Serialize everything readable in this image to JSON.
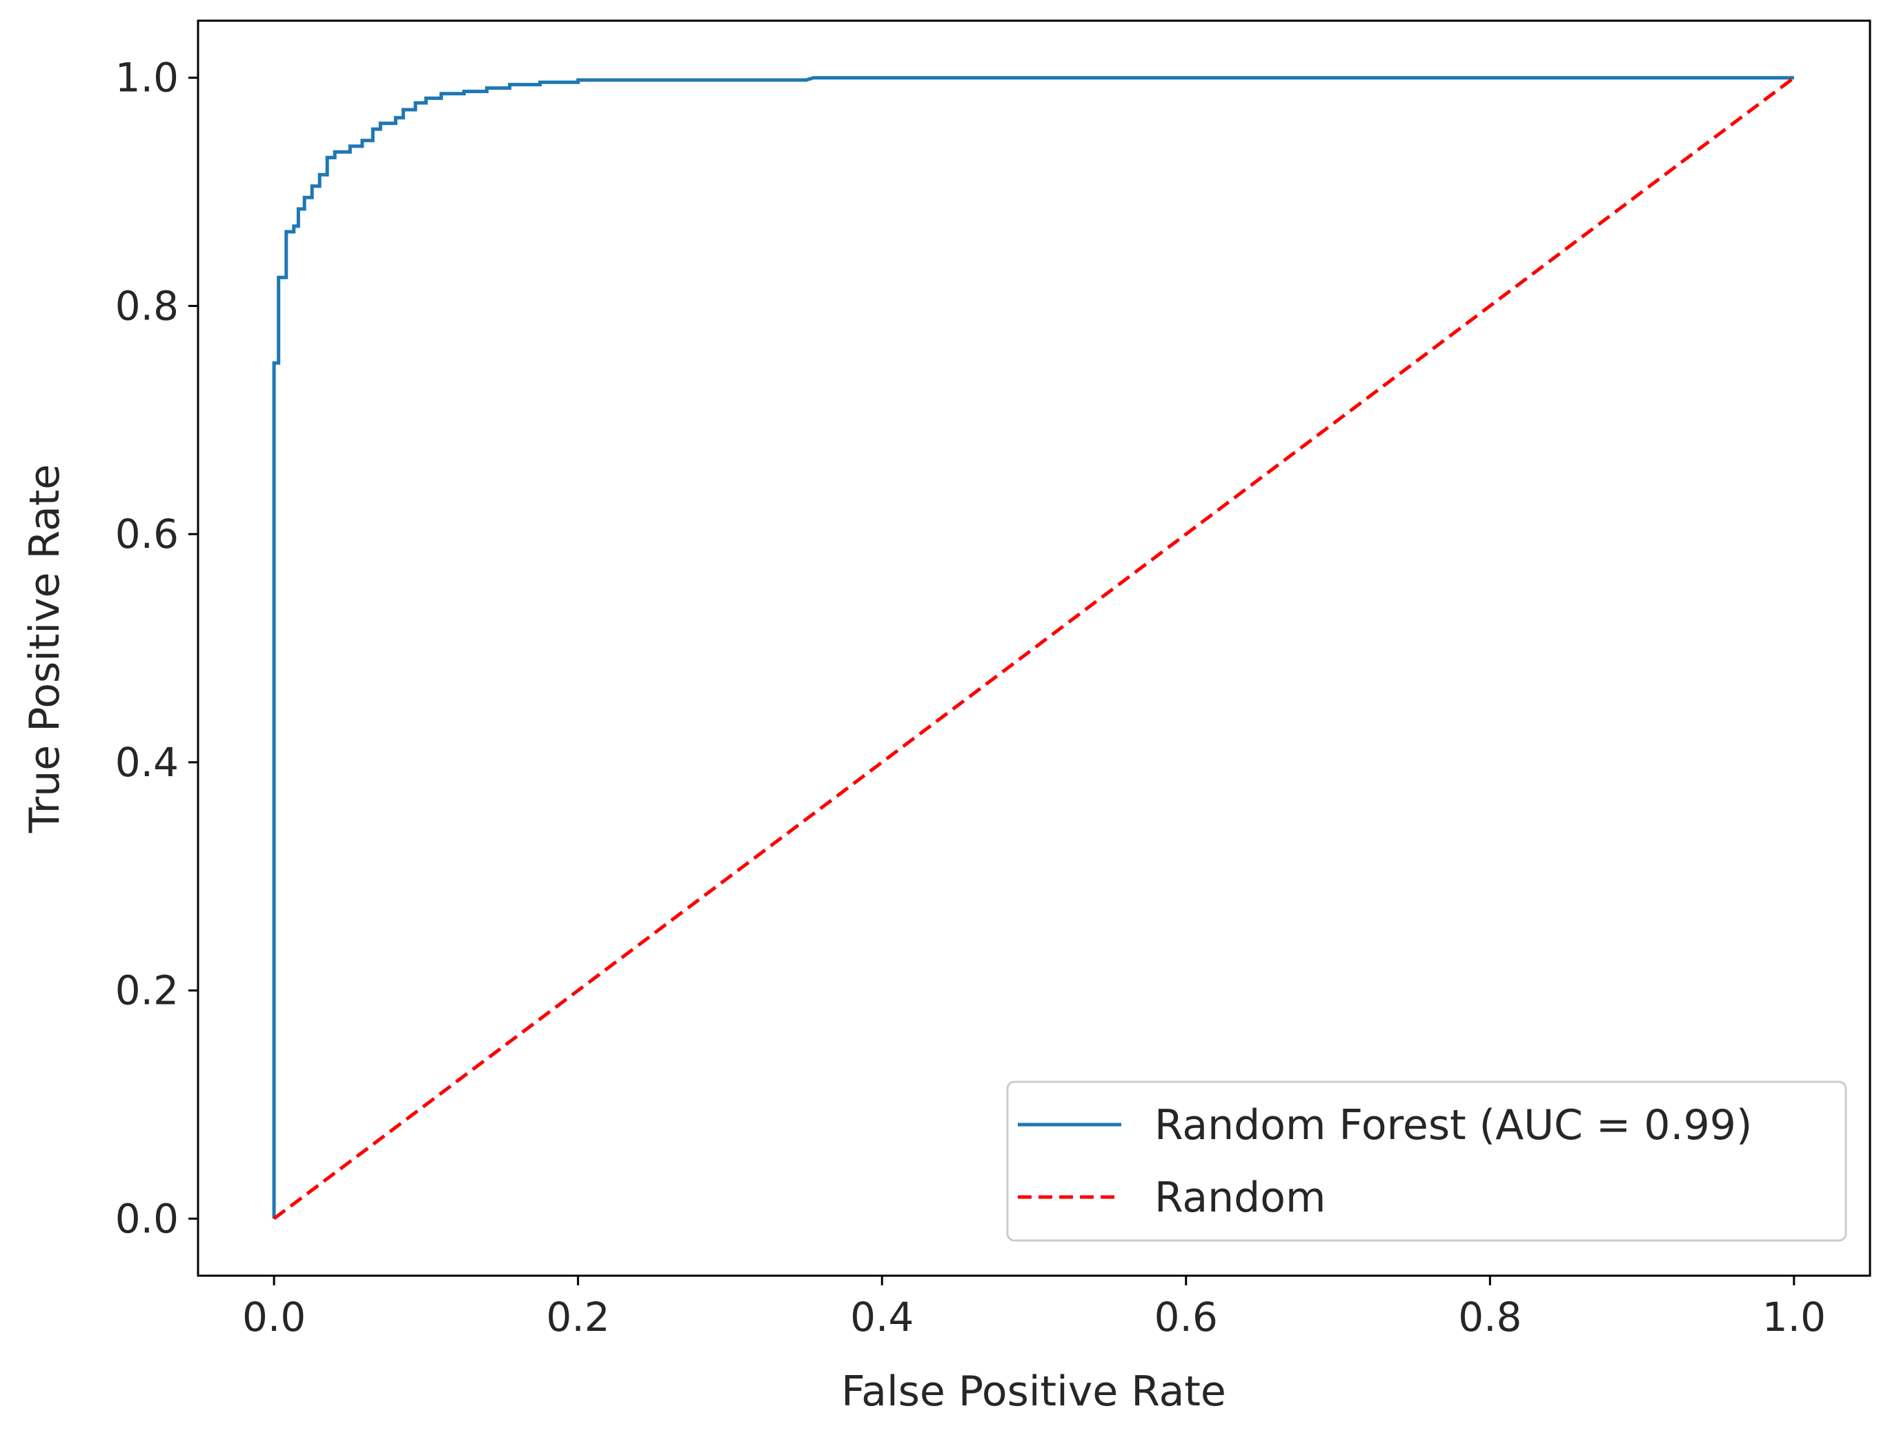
{
  "chart_data": {
    "type": "line",
    "title": "",
    "xlabel": "False Positive Rate",
    "ylabel": "True Positive Rate",
    "xlim": [
      -0.05,
      1.05
    ],
    "ylim": [
      -0.05,
      1.05
    ],
    "xticks": [
      "0.0",
      "0.2",
      "0.4",
      "0.6",
      "0.8",
      "1.0"
    ],
    "yticks": [
      "0.0",
      "0.2",
      "0.4",
      "0.6",
      "0.8",
      "1.0"
    ],
    "grid": false,
    "legend_position": "lower-right",
    "series": [
      {
        "name": "Random Forest (AUC = 0.99)",
        "color": "#1f77b4",
        "style": "solid",
        "points": [
          [
            0.0,
            0.0
          ],
          [
            0.0,
            0.75
          ],
          [
            0.003,
            0.75
          ],
          [
            0.003,
            0.825
          ],
          [
            0.008,
            0.825
          ],
          [
            0.008,
            0.865
          ],
          [
            0.013,
            0.865
          ],
          [
            0.013,
            0.87
          ],
          [
            0.016,
            0.87
          ],
          [
            0.016,
            0.885
          ],
          [
            0.02,
            0.885
          ],
          [
            0.02,
            0.895
          ],
          [
            0.025,
            0.895
          ],
          [
            0.025,
            0.905
          ],
          [
            0.03,
            0.905
          ],
          [
            0.03,
            0.915
          ],
          [
            0.035,
            0.915
          ],
          [
            0.035,
            0.93
          ],
          [
            0.04,
            0.93
          ],
          [
            0.04,
            0.935
          ],
          [
            0.05,
            0.935
          ],
          [
            0.05,
            0.94
          ],
          [
            0.058,
            0.94
          ],
          [
            0.058,
            0.945
          ],
          [
            0.065,
            0.945
          ],
          [
            0.065,
            0.955
          ],
          [
            0.07,
            0.955
          ],
          [
            0.07,
            0.96
          ],
          [
            0.08,
            0.96
          ],
          [
            0.08,
            0.965
          ],
          [
            0.085,
            0.965
          ],
          [
            0.085,
            0.972
          ],
          [
            0.093,
            0.972
          ],
          [
            0.093,
            0.978
          ],
          [
            0.1,
            0.978
          ],
          [
            0.1,
            0.982
          ],
          [
            0.11,
            0.982
          ],
          [
            0.11,
            0.986
          ],
          [
            0.125,
            0.986
          ],
          [
            0.125,
            0.988
          ],
          [
            0.14,
            0.988
          ],
          [
            0.14,
            0.991
          ],
          [
            0.155,
            0.991
          ],
          [
            0.155,
            0.994
          ],
          [
            0.175,
            0.994
          ],
          [
            0.175,
            0.996
          ],
          [
            0.2,
            0.996
          ],
          [
            0.2,
            0.998
          ],
          [
            0.35,
            0.998
          ],
          [
            0.355,
            1.0
          ],
          [
            1.0,
            1.0
          ]
        ]
      },
      {
        "name": "Random",
        "color": "#ff0000",
        "style": "dashed",
        "points": [
          [
            0.0,
            0.0
          ],
          [
            1.0,
            1.0
          ]
        ]
      }
    ]
  }
}
